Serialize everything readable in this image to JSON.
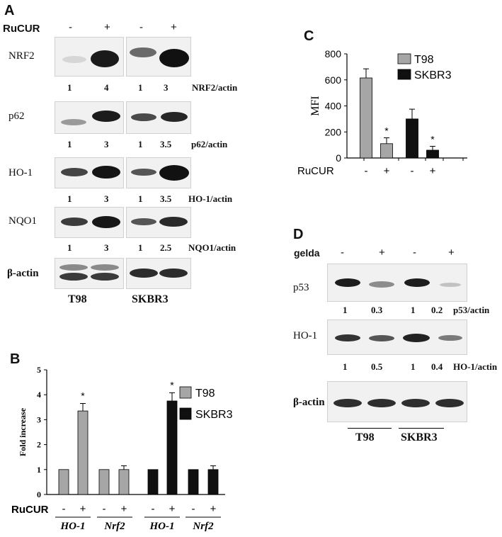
{
  "panel_a": {
    "letter": "A",
    "treatment_label": "RuCUR",
    "signs": [
      "-",
      "+",
      "-",
      "+"
    ],
    "rows": [
      {
        "protein": "NRF2",
        "ratios": [
          "1",
          "4",
          "1",
          "3"
        ],
        "ratio_label": "NRF2/actin"
      },
      {
        "protein": "p62",
        "ratios": [
          "1",
          "3",
          "1",
          "3.5"
        ],
        "ratio_label": "p62/actin"
      },
      {
        "protein": "HO-1",
        "ratios": [
          "1",
          "3",
          "1",
          "3.5"
        ],
        "ratio_label": "HO-1/actin"
      },
      {
        "protein": "NQO1",
        "ratios": [
          "1",
          "3",
          "1",
          "2.5"
        ],
        "ratio_label": "NQO1/actin"
      },
      {
        "protein": "β-actin",
        "ratios": [],
        "ratio_label": ""
      }
    ],
    "cell_lines": [
      "T98",
      "SKBR3"
    ]
  },
  "panel_b": {
    "letter": "B",
    "treatment_label": "RuCUR",
    "signs": [
      "-",
      "+",
      "-",
      "+",
      "-",
      "+",
      "-",
      "+"
    ],
    "gene_labels": [
      "HO-1",
      "Nrf2",
      "HO-1",
      "Nrf2"
    ],
    "chart_data": {
      "type": "bar",
      "ylabel": "Fold increase",
      "ylim": [
        0,
        5
      ],
      "yticks": [
        "0",
        "1",
        "2",
        "3",
        "4",
        "5"
      ],
      "legend": [
        "T98",
        "SKBR3"
      ],
      "legend_position": "right",
      "series": [
        {
          "name": "T98",
          "color": "#a6a6a6",
          "values": [
            1,
            3.35,
            1,
            1
          ],
          "errors": [
            0,
            0.3,
            0,
            0.15
          ]
        },
        {
          "name": "SKBR3",
          "color": "#101010",
          "values": [
            1,
            3.75,
            1,
            1
          ],
          "errors": [
            0,
            0.33,
            0,
            0.15
          ]
        }
      ],
      "significance": [
        "",
        "*",
        "",
        "",
        "",
        "*",
        "",
        ""
      ]
    }
  },
  "panel_c": {
    "letter": "C",
    "treatment_label": "RuCUR",
    "signs": [
      "-",
      "+",
      "-",
      "+"
    ],
    "chart_data": {
      "type": "bar",
      "ylabel": "MFI",
      "ylim": [
        0,
        800
      ],
      "yticks": [
        "0",
        "200",
        "400",
        "600",
        "800"
      ],
      "legend": [
        "T98",
        "SKBR3"
      ],
      "legend_position": "right",
      "series": [
        {
          "name": "T98",
          "color": "#a6a6a6",
          "values": [
            615,
            110
          ],
          "errors": [
            70,
            45
          ]
        },
        {
          "name": "SKBR3",
          "color": "#101010",
          "values": [
            300,
            60
          ],
          "errors": [
            75,
            30
          ]
        }
      ],
      "significance": [
        "",
        "*",
        "",
        "*"
      ]
    }
  },
  "panel_d": {
    "letter": "D",
    "treatment_label": "gelda",
    "signs": [
      "-",
      "+",
      "-",
      "+"
    ],
    "rows": [
      {
        "protein": "p53",
        "ratios": [
          "1",
          "0.3",
          "1",
          "0.2"
        ],
        "ratio_label": "p53/actin"
      },
      {
        "protein": "HO-1",
        "ratios": [
          "1",
          "0.5",
          "1",
          "0.4"
        ],
        "ratio_label": "HO-1/actin"
      },
      {
        "protein": "β-actin",
        "ratios": [],
        "ratio_label": ""
      }
    ],
    "cell_lines": [
      "T98",
      "SKBR3"
    ]
  }
}
